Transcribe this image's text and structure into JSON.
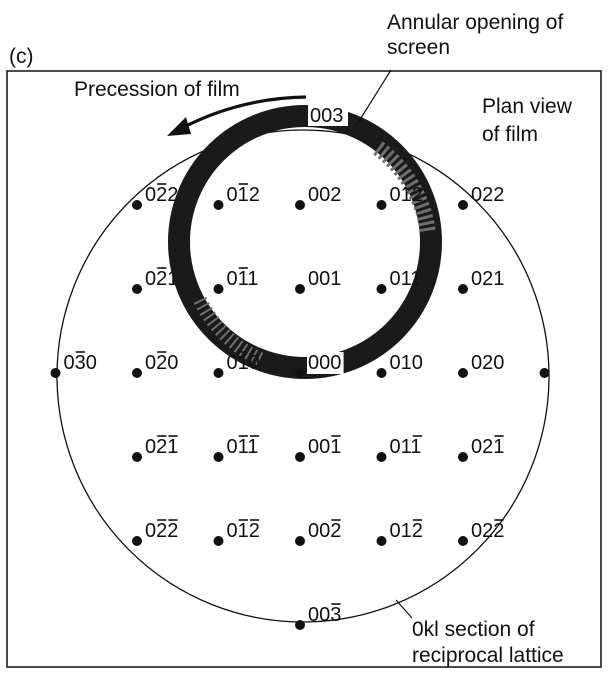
{
  "panel_label": "(c)",
  "annotations": {
    "screen_line1": "Annular opening of",
    "screen_line2": "screen",
    "precession": "Precession of film",
    "plan_line1": "Plan view",
    "plan_line2": "of film",
    "section_line1": "0kl section of",
    "section_line2": "reciprocal lattice"
  },
  "lattice": {
    "points": [
      {
        "id": "0-2-2",
        "k": -2,
        "l": 2,
        "label": "022",
        "bars": [
          1
        ]
      },
      {
        "id": "0-1-2",
        "k": -1,
        "l": 2,
        "label": "012",
        "bars": [
          1
        ]
      },
      {
        "id": "002",
        "k": 0,
        "l": 2,
        "label": "002",
        "bars": []
      },
      {
        "id": "012",
        "k": 1,
        "l": 2,
        "label": "012",
        "bars": []
      },
      {
        "id": "022",
        "k": 2,
        "l": 2,
        "label": "022",
        "bars": []
      },
      {
        "id": "0-2-1",
        "k": -2,
        "l": 1,
        "label": "021",
        "bars": [
          1
        ]
      },
      {
        "id": "0-1-1",
        "k": -1,
        "l": 1,
        "label": "011",
        "bars": [
          1
        ]
      },
      {
        "id": "001",
        "k": 0,
        "l": 1,
        "label": "001",
        "bars": []
      },
      {
        "id": "011",
        "k": 1,
        "l": 1,
        "label": "011",
        "bars": []
      },
      {
        "id": "021",
        "k": 2,
        "l": 1,
        "label": "021",
        "bars": []
      },
      {
        "id": "0-30",
        "k": -3,
        "l": 0,
        "label": "030",
        "bars": [
          1
        ]
      },
      {
        "id": "0-20",
        "k": -2,
        "l": 0,
        "label": "020",
        "bars": [
          1
        ]
      },
      {
        "id": "0-10",
        "k": -1,
        "l": 0,
        "label": "010",
        "bars": [
          1
        ]
      },
      {
        "id": "000",
        "k": 0,
        "l": 0,
        "label": "000",
        "bars": []
      },
      {
        "id": "010",
        "k": 1,
        "l": 0,
        "label": "010",
        "bars": []
      },
      {
        "id": "020",
        "k": 2,
        "l": 0,
        "label": "020",
        "bars": []
      },
      {
        "id": "030",
        "k": 3,
        "l": 0,
        "label": "",
        "bars": []
      },
      {
        "id": "0-2-1b",
        "k": -2,
        "l": -1,
        "label": "021",
        "bars": [
          1,
          2
        ]
      },
      {
        "id": "0-1-1b",
        "k": -1,
        "l": -1,
        "label": "011",
        "bars": [
          1,
          2
        ]
      },
      {
        "id": "00-1",
        "k": 0,
        "l": -1,
        "label": "001",
        "bars": [
          2
        ]
      },
      {
        "id": "01-1",
        "k": 1,
        "l": -1,
        "label": "011",
        "bars": [
          2
        ]
      },
      {
        "id": "02-1",
        "k": 2,
        "l": -1,
        "label": "021",
        "bars": [
          2
        ]
      },
      {
        "id": "0-2-2b",
        "k": -2,
        "l": -2,
        "label": "022",
        "bars": [
          1,
          2
        ]
      },
      {
        "id": "0-1-2b",
        "k": -1,
        "l": -2,
        "label": "012",
        "bars": [
          1,
          2
        ]
      },
      {
        "id": "00-2",
        "k": 0,
        "l": -2,
        "label": "002",
        "bars": [
          2
        ]
      },
      {
        "id": "01-2",
        "k": 1,
        "l": -2,
        "label": "012",
        "bars": [
          2
        ]
      },
      {
        "id": "02-2",
        "k": 2,
        "l": -2,
        "label": "022",
        "bars": [
          2
        ]
      },
      {
        "id": "00-3",
        "k": 0,
        "l": -3,
        "label": "003",
        "bars": [
          2
        ]
      },
      {
        "id": "003",
        "k": 0,
        "l": 3,
        "label": "003",
        "bars": []
      }
    ]
  },
  "colors": {
    "ink": "#111111",
    "annulus": "#1a1a1a",
    "annulus_light": "#6e6e6e",
    "paper": "#ffffff"
  }
}
